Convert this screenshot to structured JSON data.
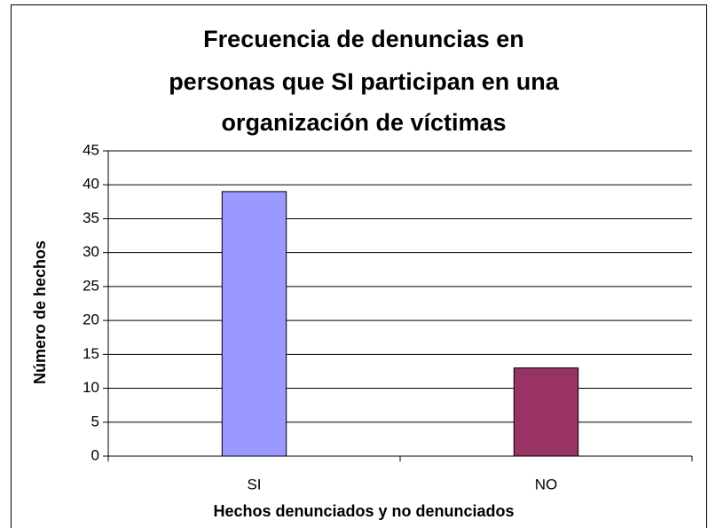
{
  "chart_data": {
    "type": "bar",
    "title": [
      "Frecuencia de denuncias en",
      "personas que SI participan en una",
      "organización de víctimas"
    ],
    "x_label": "Hechos denunciados y no denunciados",
    "y_label": "Número de hechos",
    "categories": [
      "SI",
      "NO"
    ],
    "values": [
      39,
      13
    ],
    "colors": [
      "#9999ff",
      "#993366"
    ],
    "ylim": [
      0,
      45
    ],
    "yticks": [
      0,
      5,
      10,
      15,
      20,
      25,
      30,
      35,
      40,
      45
    ],
    "grid": true
  }
}
